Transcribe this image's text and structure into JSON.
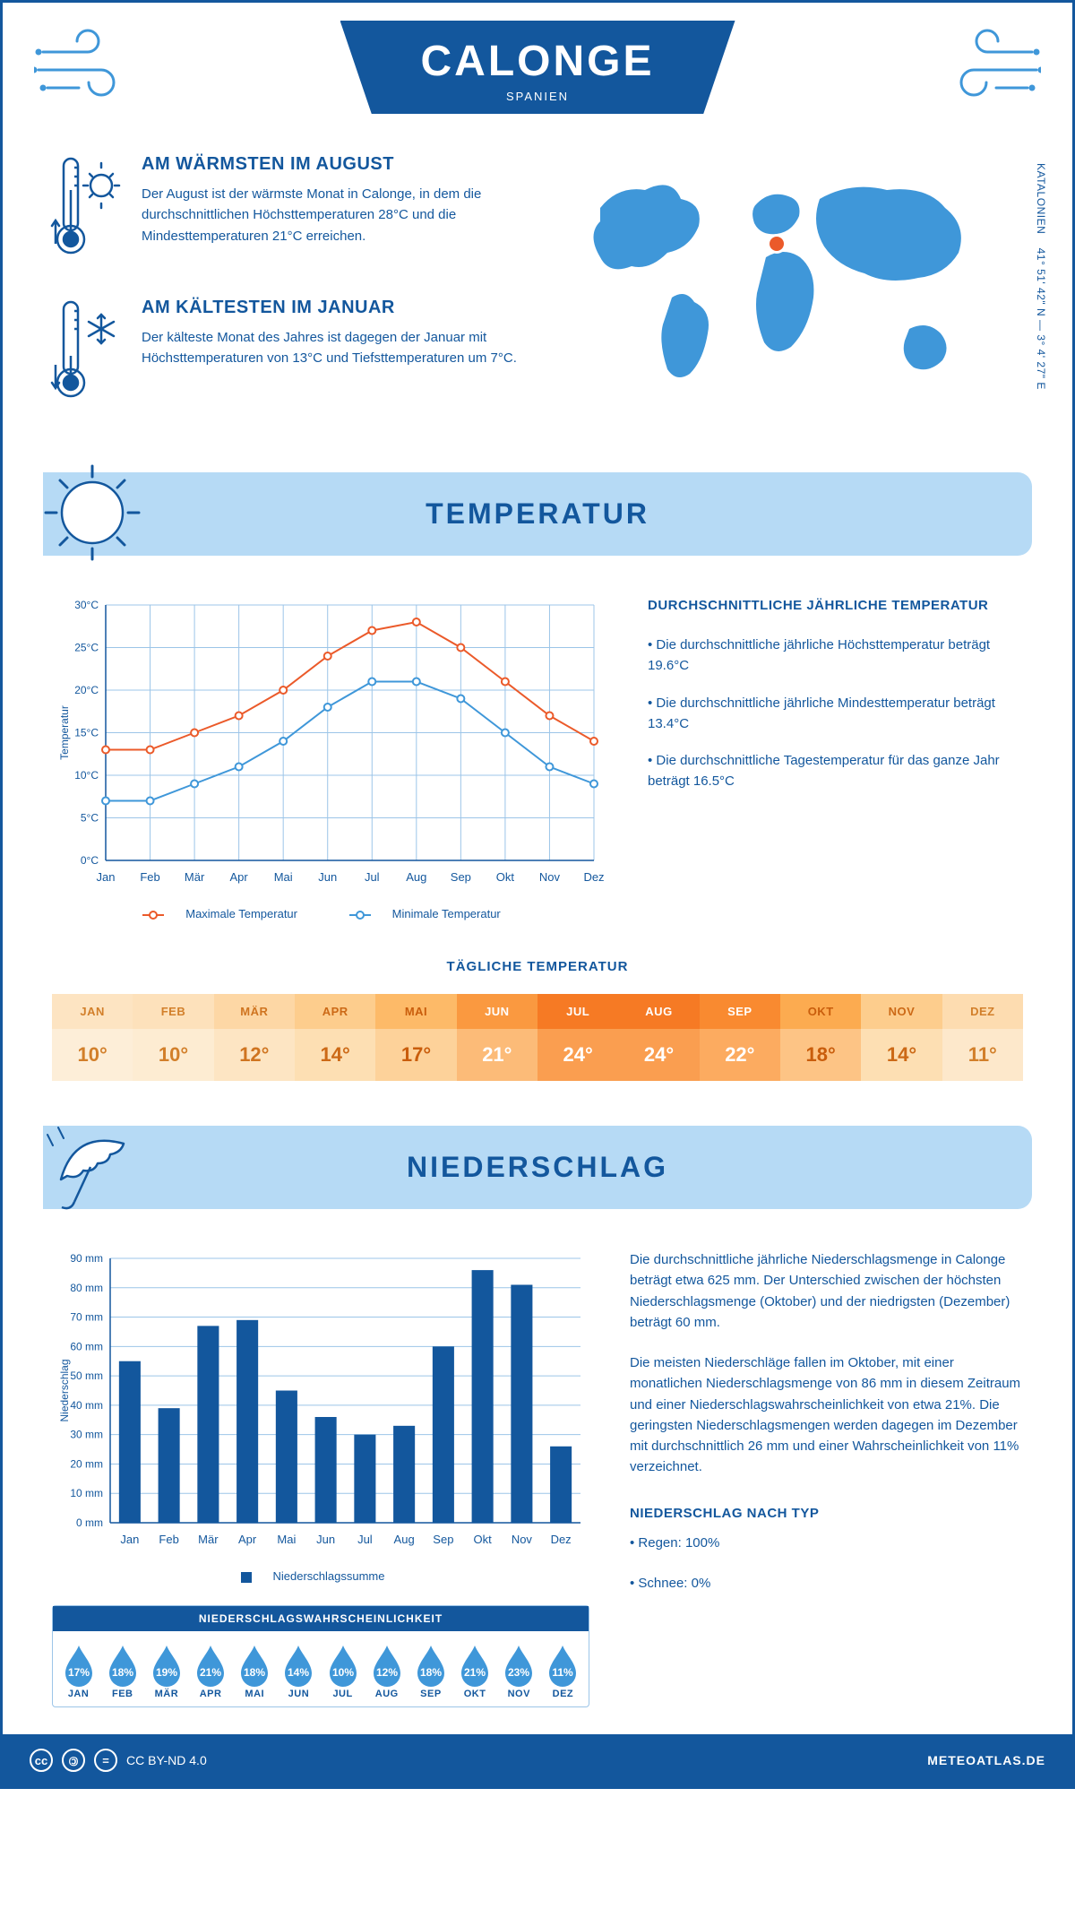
{
  "header": {
    "title": "CALONGE",
    "country": "SPANIEN"
  },
  "coords": {
    "region": "KATALONIEN",
    "lat": "41° 51' 42\" N",
    "lon": "3° 4' 27\" E"
  },
  "facts": {
    "warm": {
      "title": "AM WÄRMSTEN IM AUGUST",
      "text": "Der August ist der wärmste Monat in Calonge, in dem die durchschnittlichen Höchsttemperaturen 28°C und die Mindesttemperaturen 21°C erreichen."
    },
    "cold": {
      "title": "AM KÄLTESTEN IM JANUAR",
      "text": "Der kälteste Monat des Jahres ist dagegen der Januar mit Höchsttemperaturen von 13°C und Tiefsttemperaturen um 7°C."
    }
  },
  "sections": {
    "temp": "TEMPERATUR",
    "precip": "NIEDERSCHLAG"
  },
  "temp_chart": {
    "type": "line",
    "months": [
      "Jan",
      "Feb",
      "Mär",
      "Apr",
      "Mai",
      "Jun",
      "Jul",
      "Aug",
      "Sep",
      "Okt",
      "Nov",
      "Dez"
    ],
    "max": [
      13,
      13,
      15,
      17,
      20,
      24,
      27,
      28,
      25,
      21,
      17,
      14
    ],
    "min": [
      7,
      7,
      9,
      11,
      14,
      18,
      21,
      21,
      19,
      15,
      11,
      9
    ],
    "ylim": [
      0,
      30
    ],
    "ytick_step": 5,
    "ylabel": "Temperatur",
    "colors": {
      "max": "#eb5a2a",
      "min": "#3f97d9",
      "grid": "#9cc5e8",
      "axis": "#13579d"
    },
    "legend_max": "Maximale Temperatur",
    "legend_min": "Minimale Temperatur",
    "line_width": 2,
    "marker_size": 4
  },
  "temp_info": {
    "title": "DURCHSCHNITTLICHE JÄHRLICHE TEMPERATUR",
    "p1": "• Die durchschnittliche jährliche Höchsttemperatur beträgt 19.6°C",
    "p2": "• Die durchschnittliche jährliche Mindesttemperatur beträgt 13.4°C",
    "p3": "• Die durchschnittliche Tagestemperatur für das ganze Jahr beträgt 16.5°C"
  },
  "daily_temp": {
    "title": "TÄGLICHE TEMPERATUR",
    "months": [
      "JAN",
      "FEB",
      "MÄR",
      "APR",
      "MAI",
      "JUN",
      "JUL",
      "AUG",
      "SEP",
      "OKT",
      "NOV",
      "DEZ"
    ],
    "values": [
      "10°",
      "10°",
      "12°",
      "14°",
      "17°",
      "21°",
      "24°",
      "24°",
      "22°",
      "18°",
      "14°",
      "11°"
    ],
    "head_colors": [
      "#fde4c2",
      "#fde1bb",
      "#fdd7a5",
      "#fdcd8d",
      "#fdba68",
      "#fa9940",
      "#f67a24",
      "#f67a24",
      "#f98a30",
      "#fcab50",
      "#fdcd8d",
      "#fddcb0"
    ],
    "val_colors": [
      "#fdeed8",
      "#fdecd2",
      "#fde5c3",
      "#fddfb3",
      "#fdd29a",
      "#fcbb78",
      "#fa9e50",
      "#fa9e50",
      "#fcab60",
      "#fdc485",
      "#fddfb3",
      "#fde8cb"
    ],
    "text_colors": [
      "#d27f2a",
      "#d27f2a",
      "#cf7420",
      "#cc6916",
      "#c95d0c",
      "#ffffff",
      "#ffffff",
      "#ffffff",
      "#ffffff",
      "#c95d0c",
      "#cc6916",
      "#d27f2a"
    ]
  },
  "precip_chart": {
    "type": "bar",
    "months": [
      "Jan",
      "Feb",
      "Mär",
      "Apr",
      "Mai",
      "Jun",
      "Jul",
      "Aug",
      "Sep",
      "Okt",
      "Nov",
      "Dez"
    ],
    "values": [
      55,
      39,
      67,
      69,
      45,
      36,
      30,
      33,
      60,
      86,
      81,
      26
    ],
    "ylim": [
      0,
      90
    ],
    "ytick_step": 10,
    "ylabel": "Niederschlag",
    "bar_color": "#13579d",
    "grid_color": "#9cc5e8",
    "legend": "Niederschlagssumme",
    "bar_width": 0.55
  },
  "precip_info": {
    "p1": "Die durchschnittliche jährliche Niederschlagsmenge in Calonge beträgt etwa 625 mm. Der Unterschied zwischen der höchsten Niederschlagsmenge (Oktober) und der niedrigsten (Dezember) beträgt 60 mm.",
    "p2": "Die meisten Niederschläge fallen im Oktober, mit einer monatlichen Niederschlagsmenge von 86 mm in diesem Zeitraum und einer Niederschlagswahrscheinlichkeit von etwa 21%. Die geringsten Niederschlagsmengen werden dagegen im Dezember mit durchschnittlich 26 mm und einer Wahrscheinlichkeit von 11% verzeichnet.",
    "type_title": "NIEDERSCHLAG NACH TYP",
    "type_rain": "• Regen: 100%",
    "type_snow": "• Schnee: 0%"
  },
  "prob": {
    "title": "NIEDERSCHLAGSWAHRSCHEINLICHKEIT",
    "months": [
      "JAN",
      "FEB",
      "MÄR",
      "APR",
      "MAI",
      "JUN",
      "JUL",
      "AUG",
      "SEP",
      "OKT",
      "NOV",
      "DEZ"
    ],
    "values": [
      "17%",
      "18%",
      "19%",
      "21%",
      "18%",
      "14%",
      "10%",
      "12%",
      "18%",
      "21%",
      "23%",
      "11%"
    ],
    "drop_color": "#3f97d9"
  },
  "footer": {
    "license": "CC BY-ND 4.0",
    "site": "METEOATLAS.DE"
  },
  "colors": {
    "primary": "#13579d",
    "light": "#b6daf5",
    "accent": "#3f97d9"
  }
}
